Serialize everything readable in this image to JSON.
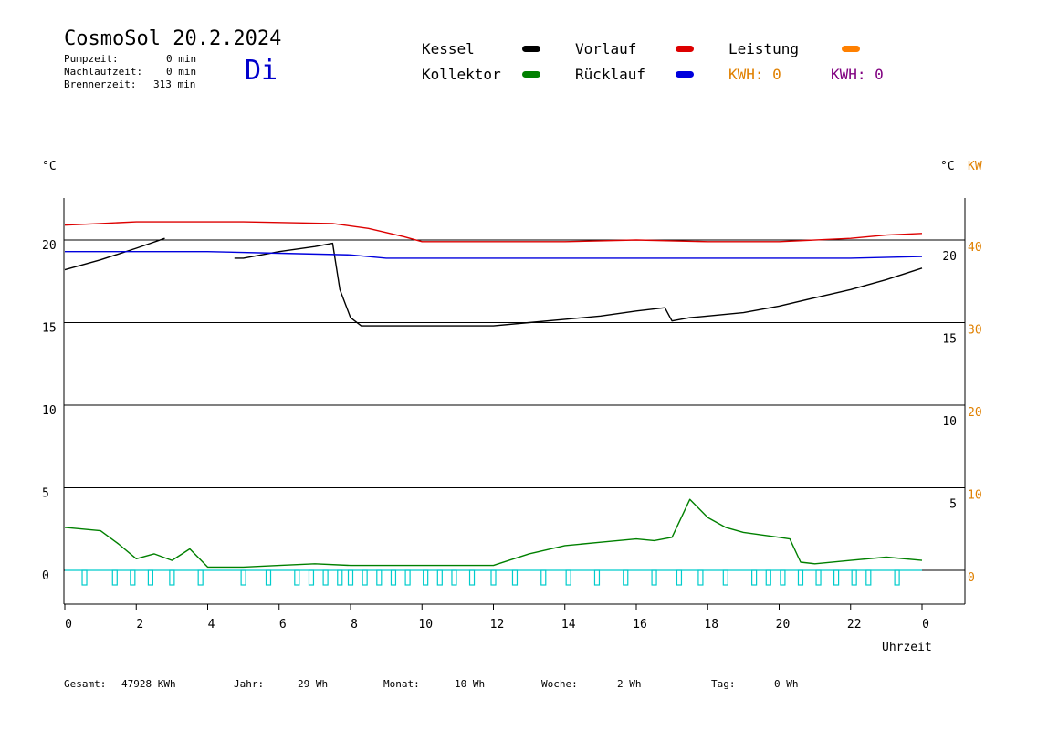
{
  "header": {
    "title": "CosmoSol 20.2.2024",
    "day": "Di",
    "stats": [
      {
        "label": "Pumpzeit:",
        "value": "0 min"
      },
      {
        "label": "Nachlaufzeit:",
        "value": "0 min"
      },
      {
        "label": "Brennerzeit:",
        "value": "313 min"
      }
    ]
  },
  "legend": {
    "items": [
      {
        "label": "Kessel",
        "color": "#000000"
      },
      {
        "label": "Vorlauf",
        "color": "#dd0000"
      },
      {
        "label": "Leistung",
        "color": "#ff8000"
      },
      {
        "label": "Kollektor",
        "color": "#008000"
      },
      {
        "label": "Rücklauf",
        "color": "#0000dd"
      }
    ],
    "kwh_orange": "KWH: 0",
    "kwh_purple": "KWH: 0",
    "kwh_orange_color": "#e08000",
    "kwh_purple_color": "#800080"
  },
  "axes": {
    "left_unit": "°C",
    "right_unit": "°C",
    "right_kw_unit": "KW",
    "x_label": "Uhrzeit"
  },
  "footer": {
    "items": [
      {
        "label": "Gesamt:",
        "value": "47928 KWh"
      },
      {
        "label": "Jahr:",
        "value": "29 Wh"
      },
      {
        "label": "Monat:",
        "value": "10 Wh"
      },
      {
        "label": "Woche:",
        "value": "2 Wh"
      },
      {
        "label": "Tag:",
        "value": "0 Wh"
      }
    ]
  },
  "chart_data": {
    "type": "line",
    "xlabel": "Uhrzeit",
    "ylabel": "°C",
    "xlim": [
      0,
      24
    ],
    "ylim": [
      -2,
      22.5
    ],
    "grid": true,
    "x_ticks": [
      "0",
      "2",
      "4",
      "6",
      "8",
      "10",
      "12",
      "14",
      "16",
      "18",
      "20",
      "22",
      "0"
    ],
    "y_left_ticks": [
      0,
      5,
      10,
      15,
      20
    ],
    "y_right_celsius_ticks": [
      "5",
      "10",
      "15",
      "20"
    ],
    "y_right_kw_ticks": [
      "0",
      "10",
      "20",
      "30",
      "40"
    ],
    "series": [
      {
        "name": "Kessel",
        "color": "#000000",
        "x": [
          0,
          1,
          2,
          2.8,
          null,
          4.75,
          5,
          6,
          7,
          7.5,
          7.7,
          8,
          8.3,
          9,
          11,
          12,
          13,
          14,
          15,
          16,
          16.8,
          17,
          17.5,
          18,
          19,
          20,
          21,
          22,
          23,
          24
        ],
        "y": [
          18.2,
          18.8,
          19.5,
          20.1,
          null,
          18.9,
          18.9,
          19.3,
          19.6,
          19.8,
          17,
          15.3,
          14.8,
          14.8,
          14.8,
          14.8,
          15.0,
          15.2,
          15.4,
          15.7,
          15.9,
          15.1,
          15.3,
          15.4,
          15.6,
          16.0,
          16.5,
          17.0,
          17.6,
          18.3
        ]
      },
      {
        "name": "Vorlauf",
        "color": "#dd0000",
        "x": [
          0,
          1,
          2,
          5,
          7.5,
          8.5,
          9.5,
          10,
          12,
          14,
          16,
          18,
          20,
          22,
          23,
          24
        ],
        "y": [
          20.9,
          21.0,
          21.1,
          21.1,
          21.0,
          20.7,
          20.2,
          19.9,
          19.9,
          19.9,
          20.0,
          19.9,
          19.9,
          20.1,
          20.3,
          20.4
        ]
      },
      {
        "name": "Rücklauf",
        "color": "#0000dd",
        "x": [
          0,
          2,
          4,
          6,
          8,
          9,
          10,
          12,
          14,
          16,
          18,
          20,
          22,
          24
        ],
        "y": [
          19.3,
          19.3,
          19.3,
          19.2,
          19.1,
          18.9,
          18.9,
          18.9,
          18.9,
          18.9,
          18.9,
          18.9,
          18.9,
          19.0
        ]
      },
      {
        "name": "Kollektor",
        "color": "#008000",
        "x": [
          0,
          1,
          1.5,
          2,
          2.5,
          3,
          3.5,
          4,
          5,
          6,
          7,
          8,
          9,
          10,
          11,
          12,
          13,
          14,
          15,
          16,
          16.5,
          17,
          17.5,
          18,
          18.5,
          19,
          20,
          20.3,
          20.6,
          21,
          22,
          23,
          24
        ],
        "y": [
          2.6,
          2.4,
          1.6,
          0.7,
          1.0,
          0.6,
          1.3,
          0.2,
          0.2,
          0.3,
          0.4,
          0.3,
          0.3,
          0.3,
          0.3,
          0.3,
          1.0,
          1.5,
          1.7,
          1.9,
          1.8,
          2.0,
          4.3,
          3.2,
          2.6,
          2.3,
          2.0,
          1.9,
          0.5,
          0.4,
          0.6,
          0.8,
          0.6
        ]
      }
    ],
    "pump_pulses_h": [
      0.55,
      1.4,
      1.9,
      2.4,
      3.0,
      3.8,
      5.0,
      5.7,
      6.5,
      6.9,
      7.3,
      7.7,
      8.0,
      8.4,
      8.8,
      9.2,
      9.6,
      10.1,
      10.5,
      10.9,
      11.4,
      12.0,
      12.6,
      13.4,
      14.1,
      14.9,
      15.7,
      16.5,
      17.2,
      17.8,
      18.5,
      19.3,
      19.7,
      20.1,
      20.6,
      21.1,
      21.6,
      22.1,
      22.5,
      23.3
    ]
  }
}
